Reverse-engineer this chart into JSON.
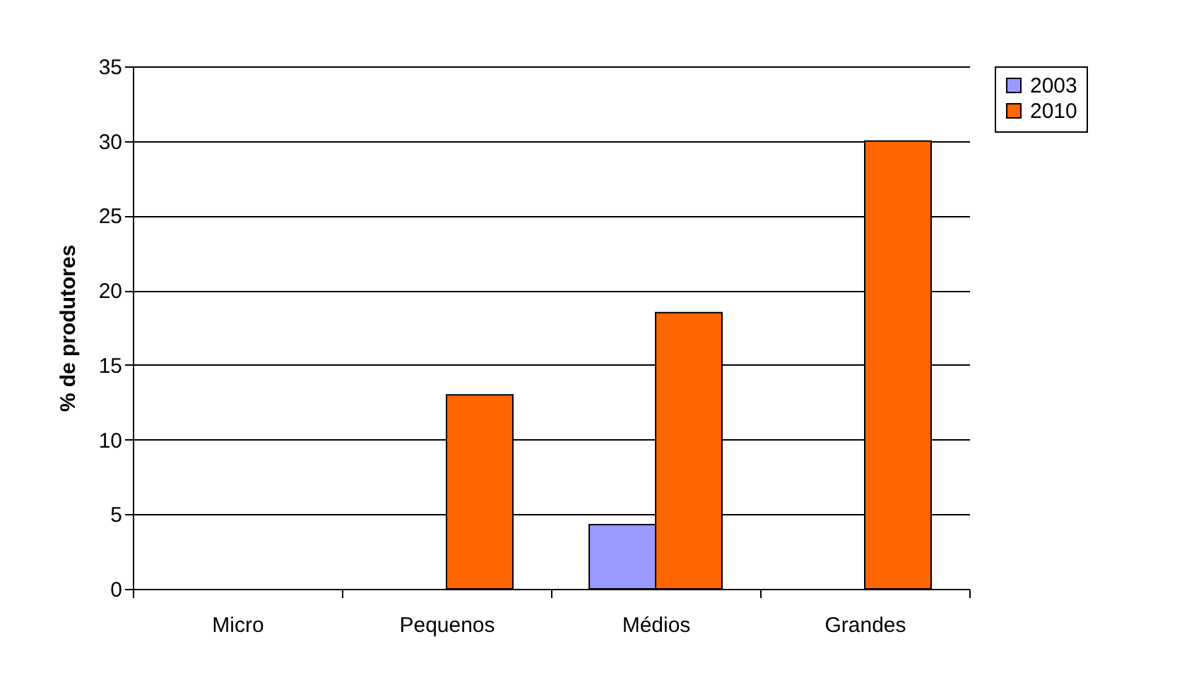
{
  "chart_data": {
    "type": "bar",
    "ylabel": "% de produtores",
    "categories": [
      "Micro",
      "Pequenos",
      "Médios",
      "Grandes"
    ],
    "series": [
      {
        "name": "2003",
        "color": "#9999ff",
        "values": [
          0,
          0,
          4.3,
          0
        ]
      },
      {
        "name": "2010",
        "color": "#ff6600",
        "values": [
          0,
          13,
          18.5,
          30
        ]
      }
    ],
    "ylim": [
      0,
      35
    ],
    "yticks": [
      0,
      5,
      10,
      15,
      20,
      25,
      30,
      35
    ],
    "grid": "y",
    "legend": "right"
  }
}
